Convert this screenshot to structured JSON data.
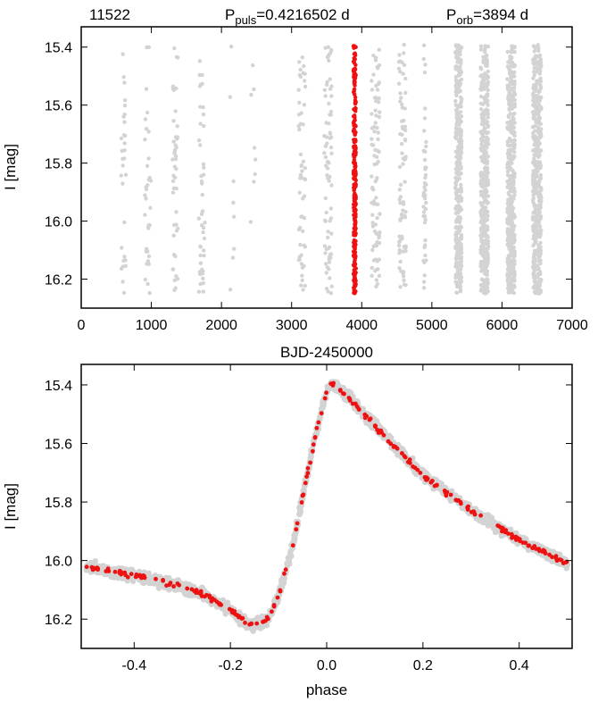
{
  "header": {
    "star_id": "11522",
    "puls_prefix": "P",
    "puls_sub": "puls",
    "puls_value": "=0.4216502 d",
    "orb_prefix": "P",
    "orb_sub": "orb",
    "orb_value": "=3894 d"
  },
  "colors": {
    "all_points": "#d3d3d3",
    "highlight": "#ee1111",
    "axis": "#000000"
  },
  "chart_data": [
    {
      "type": "scatter",
      "xlabel": "BJD-2450000",
      "ylabel": "I [mag]",
      "xlim": [
        0,
        7000
      ],
      "ylim": [
        16.3,
        15.33
      ],
      "y_inverted": true,
      "xticks": [
        0,
        1000,
        2000,
        3000,
        4000,
        5000,
        6000,
        7000
      ],
      "xtick_labels": [
        "0",
        "1000",
        "2000",
        "3000",
        "4000",
        "5000",
        "6000",
        "7000"
      ],
      "yticks": [
        15.4,
        15.6,
        15.8,
        16.0,
        16.2
      ],
      "ytick_labels": [
        "15.4",
        "15.6",
        "15.8",
        "16.0",
        "16.2"
      ],
      "series": [
        {
          "color": "#d3d3d3",
          "description": "all observations; observing seasons at BJD-2450000",
          "seasons": [
            [
              600,
              80,
              30,
              1
            ],
            [
              950,
              85,
              35,
              1
            ],
            [
              1340,
              80,
              45,
              1
            ],
            [
              1720,
              90,
              45,
              1
            ],
            [
              2150,
              60,
              8,
              1
            ],
            [
              2450,
              70,
              8,
              1
            ],
            [
              3150,
              100,
              55,
              1
            ],
            [
              3520,
              110,
              75,
              1
            ],
            [
              4200,
              120,
              90,
              1
            ],
            [
              4580,
              100,
              80,
              1
            ],
            [
              4900,
              40,
              45,
              1
            ],
            [
              5380,
              90,
              350,
              1
            ],
            [
              5750,
              110,
              400,
              1
            ],
            [
              6130,
              110,
              450,
              1
            ],
            [
              6500,
              120,
              450,
              1
            ]
          ]
        },
        {
          "color": "#ee1111",
          "description": "highlighted season",
          "seasons": [
            [
              3900,
              35,
              250,
              1
            ]
          ]
        }
      ]
    },
    {
      "type": "scatter",
      "xlabel": "phase",
      "ylabel": "I [mag]",
      "xlim": [
        -0.51,
        0.51
      ],
      "ylim": [
        16.3,
        15.33
      ],
      "y_inverted": true,
      "xticks": [
        -0.4,
        -0.2,
        0.0,
        0.2,
        0.4
      ],
      "xtick_labels": [
        "-0.4",
        "-0.2",
        "0.0",
        "0.2",
        "0.4"
      ],
      "yticks": [
        15.4,
        15.6,
        15.8,
        16.0,
        16.2
      ],
      "ytick_labels": [
        "15.4",
        "15.6",
        "15.8",
        "16.0",
        "16.2"
      ],
      "light_curve": {
        "phase": [
          -0.5,
          -0.4,
          -0.3,
          -0.25,
          -0.2,
          -0.17,
          -0.15,
          -0.12,
          -0.1,
          -0.07,
          -0.05,
          -0.02,
          0.0,
          0.01,
          0.05,
          0.1,
          0.2,
          0.3,
          0.4,
          0.5
        ],
        "mag": [
          16.02,
          16.05,
          16.09,
          16.12,
          16.17,
          16.21,
          16.22,
          16.2,
          16.12,
          15.95,
          15.78,
          15.55,
          15.42,
          15.39,
          15.45,
          15.54,
          15.71,
          15.83,
          15.93,
          16.01
        ]
      },
      "series": [
        {
          "color": "#d3d3d3",
          "points": 2000,
          "scatter_mag": 0.025
        },
        {
          "color": "#ee1111",
          "points": 230,
          "scatter_mag": 0.012
        }
      ]
    }
  ]
}
